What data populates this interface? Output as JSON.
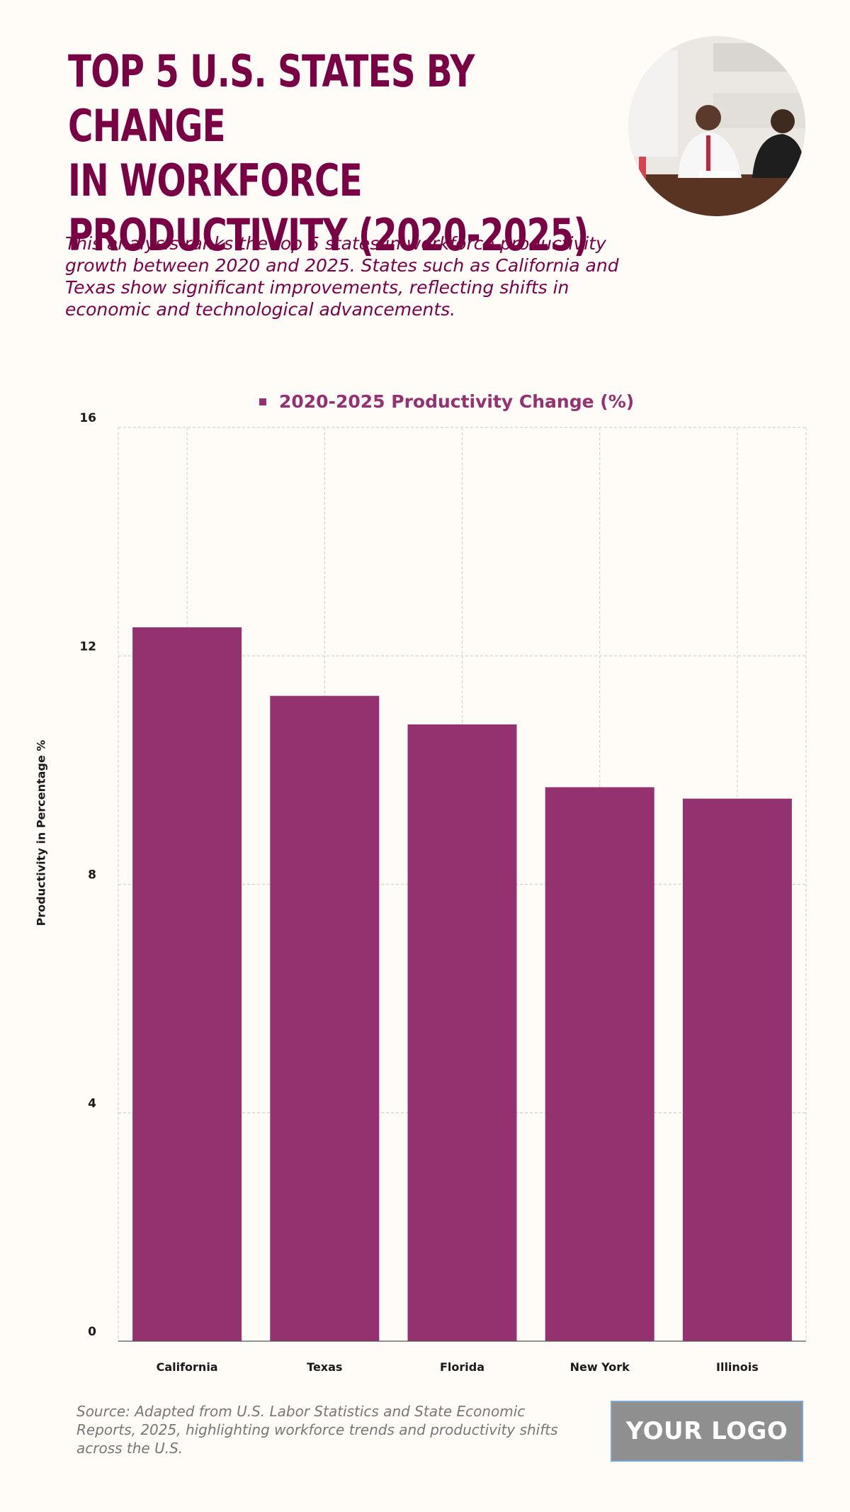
{
  "header": {
    "title": "TOP 5 U.S. STATES BY CHANGE IN WORKFORCE PRODUCTIVITY (2020-2025)",
    "title_lines": [
      "TOP 5 U.S. STATES BY CHANGE",
      "IN WORKFORCE",
      "PRODUCTIVITY (2020-2025)"
    ],
    "subtitle": "This analysis ranks the top 5 states in workforce productivity growth between 2020 and 2025. States such as California and Texas show significant improvements, reflecting shifts in economic and technological advancements.",
    "photo_icon": "business-meeting-photo"
  },
  "colors": {
    "title": "#7a0044",
    "bar": "#94316f",
    "background": "#fffbf7",
    "logo_bg": "#8f8f8f"
  },
  "chart_data": {
    "type": "bar",
    "title": "",
    "legend": [
      "2020-2025 Productivity Change (%)"
    ],
    "legend_position": "top-center",
    "categories": [
      "California",
      "Texas",
      "Florida",
      "New York",
      "Illinois"
    ],
    "series": [
      {
        "name": "2020-2025 Productivity Change (%)",
        "values": [
          12.5,
          11.3,
          10.8,
          9.7,
          9.5
        ]
      }
    ],
    "xlabel": "",
    "ylabel": "Productivity in Percentage %",
    "ylim": [
      0,
      16
    ],
    "yticks": [
      0,
      4,
      8,
      12,
      16
    ],
    "grid": true
  },
  "footer": {
    "source": "Source: Adapted from U.S. Labor Statistics and State Economic Reports, 2025, highlighting workforce trends and productivity shifts across the U.S.",
    "logo_text": "YOUR LOGO"
  }
}
